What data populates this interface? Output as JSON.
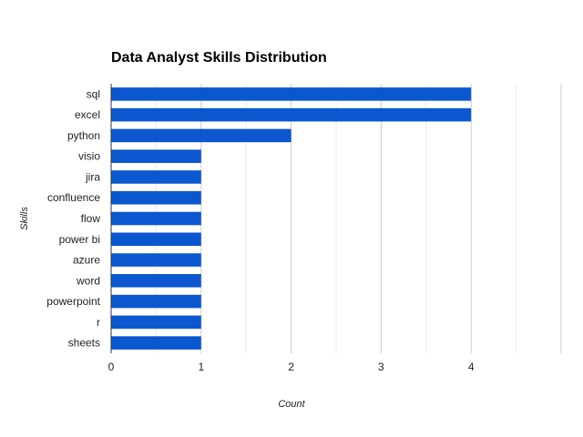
{
  "chart_data": {
    "type": "bar",
    "orientation": "horizontal",
    "title": "Data Analyst Skills Distribution",
    "xlabel": "Count",
    "ylabel": "Skills",
    "categories": [
      "sql",
      "excel",
      "python",
      "visio",
      "jira",
      "confluence",
      "flow",
      "power bi",
      "azure",
      "word",
      "powerpoint",
      "r",
      "sheets"
    ],
    "values": [
      4,
      4,
      2,
      1,
      1,
      1,
      1,
      1,
      1,
      1,
      1,
      1,
      1
    ],
    "xlim": [
      0,
      5
    ],
    "xticks": [
      0,
      1,
      2,
      3,
      4
    ],
    "grid": true,
    "legend": "none",
    "bar_color": "#0b57d0",
    "grid_color": "#cccccc",
    "minor_grid_color": "#ebebeb"
  }
}
